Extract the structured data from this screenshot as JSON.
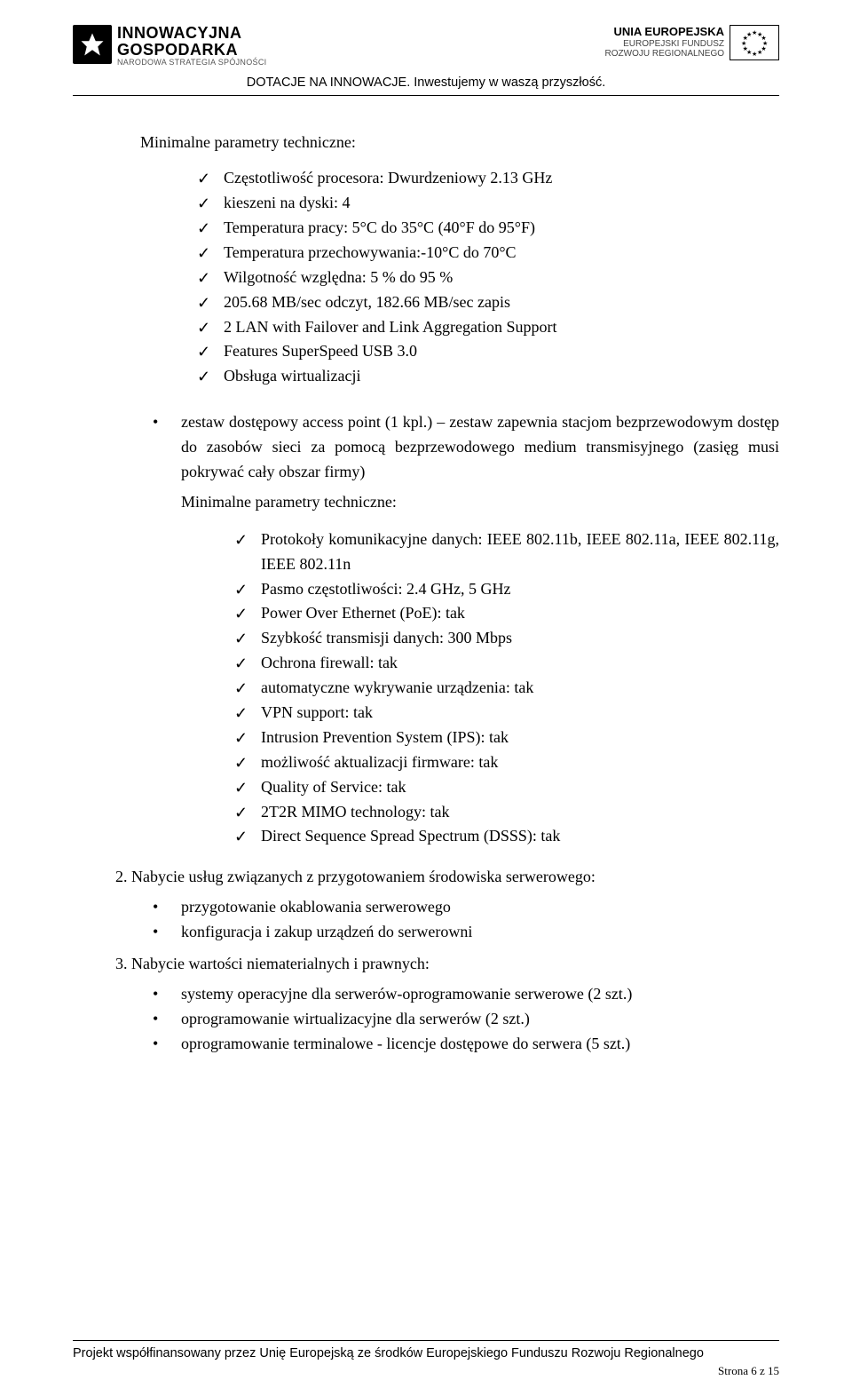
{
  "header": {
    "left": {
      "line1": "INNOWACYJNA",
      "line2": "GOSPODARKA",
      "line3": "NARODOWA STRATEGIA SPÓJNOŚCI"
    },
    "right": {
      "line1": "UNIA EUROPEJSKA",
      "line2": "EUROPEJSKI FUNDUSZ",
      "line3": "ROZWOJU REGIONALNEGO"
    },
    "tagline": "DOTACJE NA INNOWACJE. Inwestujemy w waszą przyszłość."
  },
  "section1": {
    "title": "Minimalne parametry techniczne:",
    "items": [
      "Częstotliwość procesora: Dwurdzeniowy 2.13 GHz",
      "kieszeni na dyski: 4",
      "Temperatura pracy: 5°C do 35°C (40°F do 95°F)",
      "Temperatura przechowywania:-10°C do 70°C",
      "Wilgotność względna: 5 % do 95 %",
      "205.68 MB/sec odczyt, 182.66 MB/sec zapis",
      "2 LAN with Failover and Link Aggregation Support",
      "Features SuperSpeed USB 3.0",
      "Obsługa wirtualizacji"
    ]
  },
  "bullet1": {
    "text": "zestaw dostępowy access point (1 kpl.) – zestaw zapewnia stacjom bezprzewodowym dostęp do zasobów sieci za pomocą bezprzewodowego medium transmisyjnego (zasięg musi pokrywać cały obszar firmy)",
    "subTitle": "Minimalne parametry techniczne:",
    "items": [
      "Protokoły komunikacyjne danych: IEEE 802.11b, IEEE 802.11a, IEEE 802.11g, IEEE 802.11n",
      "Pasmo częstotliwości:        2.4 GHz, 5 GHz",
      "Power Over Ethernet (PoE): tak",
      "Szybkość transmisji danych:        300 Mbps",
      "Ochrona firewall: tak",
      "automatyczne wykrywanie urządzenia: tak",
      "VPN support: tak",
      "Intrusion Prevention System (IPS): tak",
      "możliwość aktualizacji firmware: tak",
      "Quality of Service: tak",
      "2T2R MIMO technology: tak",
      "Direct Sequence Spread Spectrum (DSSS): tak"
    ]
  },
  "ord2": {
    "title": "2. Nabycie usług związanych z przygotowaniem środowiska serwerowego:",
    "items": [
      "przygotowanie okablowania serwerowego",
      "konfiguracja i zakup urządzeń do serwerowni"
    ]
  },
  "ord3": {
    "title": "3. Nabycie wartości niematerialnych i prawnych:",
    "items": [
      "systemy operacyjne dla serwerów-oprogramowanie serwerowe (2 szt.)",
      "oprogramowanie wirtualizacyjne dla serwerów (2 szt.)",
      "oprogramowanie terminalowe - licencje dostępowe do serwera (5 szt.)"
    ]
  },
  "footer": {
    "line": "Projekt współfinansowany przez Unię Europejską ze środków Europejskiego Funduszu Rozwoju Regionalnego",
    "page": "Strona 6 z 15"
  }
}
